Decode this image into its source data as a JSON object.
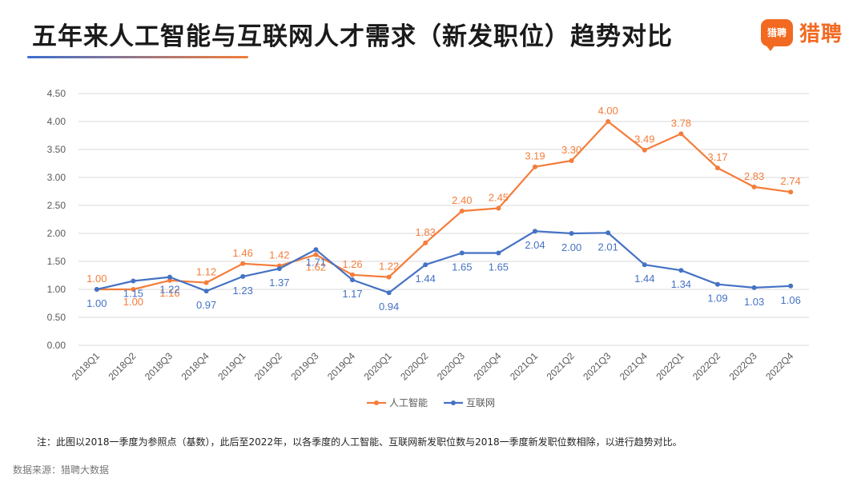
{
  "header": {
    "title": "五年来人工智能与互联网人才需求（新发职位）趋势对比",
    "logo_text": "猎聘",
    "logo_icon": "猎聘",
    "logo_icon_name": "speech-bubble-logo-icon"
  },
  "colors": {
    "ai": "#f47d3a",
    "internet": "#4472c4",
    "grid": "#d9d9d9",
    "brand": "#f26a21"
  },
  "chart_data": {
    "type": "line",
    "categories": [
      "2018Q1",
      "2018Q2",
      "2018Q3",
      "2018Q4",
      "2019Q1",
      "2019Q2",
      "2019Q3",
      "2019Q4",
      "2020Q1",
      "2020Q2",
      "2020Q3",
      "2020Q4",
      "2021Q1",
      "2021Q2",
      "2021Q3",
      "2021Q4",
      "2022Q1",
      "2022Q2",
      "2022Q3",
      "2022Q4"
    ],
    "series": [
      {
        "name": "人工智能",
        "color": "#f47d3a",
        "values": [
          1.0,
          1.0,
          1.16,
          1.12,
          1.46,
          1.42,
          1.62,
          1.26,
          1.22,
          1.83,
          2.4,
          2.45,
          3.19,
          3.3,
          4.0,
          3.49,
          3.78,
          3.17,
          2.83,
          2.74
        ],
        "labels": [
          "1.00",
          "1.00",
          "1.16",
          "1.12",
          "1.46",
          "1.42",
          "1.62",
          "1.26",
          "1.22",
          "1.83",
          "2.40",
          "2.45",
          "3.19",
          "3.30",
          "4.00",
          "3.49",
          "3.78",
          "3.17",
          "2.83",
          "2.74"
        ]
      },
      {
        "name": "互联网",
        "color": "#4472c4",
        "values": [
          1.0,
          1.15,
          1.22,
          0.97,
          1.23,
          1.37,
          1.71,
          1.17,
          0.94,
          1.44,
          1.65,
          1.65,
          2.04,
          2.0,
          2.01,
          1.44,
          1.34,
          1.09,
          1.03,
          1.06
        ],
        "labels": [
          "1.00",
          "1.15",
          "1.22",
          "0.97",
          "1.23",
          "1.37",
          "1.71",
          "1.17",
          "0.94",
          "1.44",
          "1.65",
          "1.65",
          "2.04",
          "2.00",
          "2.01",
          "1.44",
          "1.34",
          "1.09",
          "1.03",
          "1.06"
        ]
      }
    ],
    "ylim": [
      0,
      4.5
    ],
    "yticks": [
      "0.00",
      "0.50",
      "1.00",
      "1.50",
      "2.00",
      "2.50",
      "3.00",
      "3.50",
      "4.00",
      "4.50"
    ],
    "grid": true,
    "legend": "bottom-center"
  },
  "footer": {
    "note": "注：此图以2018一季度为参照点（基数），此后至2022年，以各季度的人工智能、互联网新发职位数与2018一季度新发职位数相除，以进行趋势对比。",
    "source": "数据来源：猎聘大数据"
  }
}
